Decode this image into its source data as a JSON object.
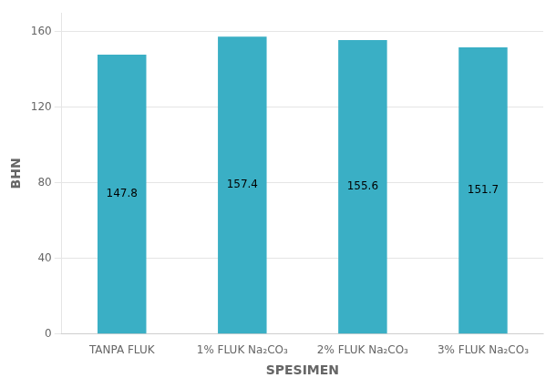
{
  "chart_data": {
    "type": "bar",
    "categories": [
      "TANPA FLUK",
      "1% FLUK Na₂CO₃",
      "2% FLUK Na₂CO₃",
      "3% FLUK Na₂CO₃"
    ],
    "values": [
      147.8,
      157.4,
      155.6,
      151.7
    ],
    "color": "#3AAFC5",
    "xlabel": "SPESIMEN",
    "ylabel": "BHN",
    "ylim": [
      0,
      170
    ],
    "yticks": [
      0,
      40,
      80,
      120,
      160
    ],
    "grid": true,
    "data_labels": true
  }
}
